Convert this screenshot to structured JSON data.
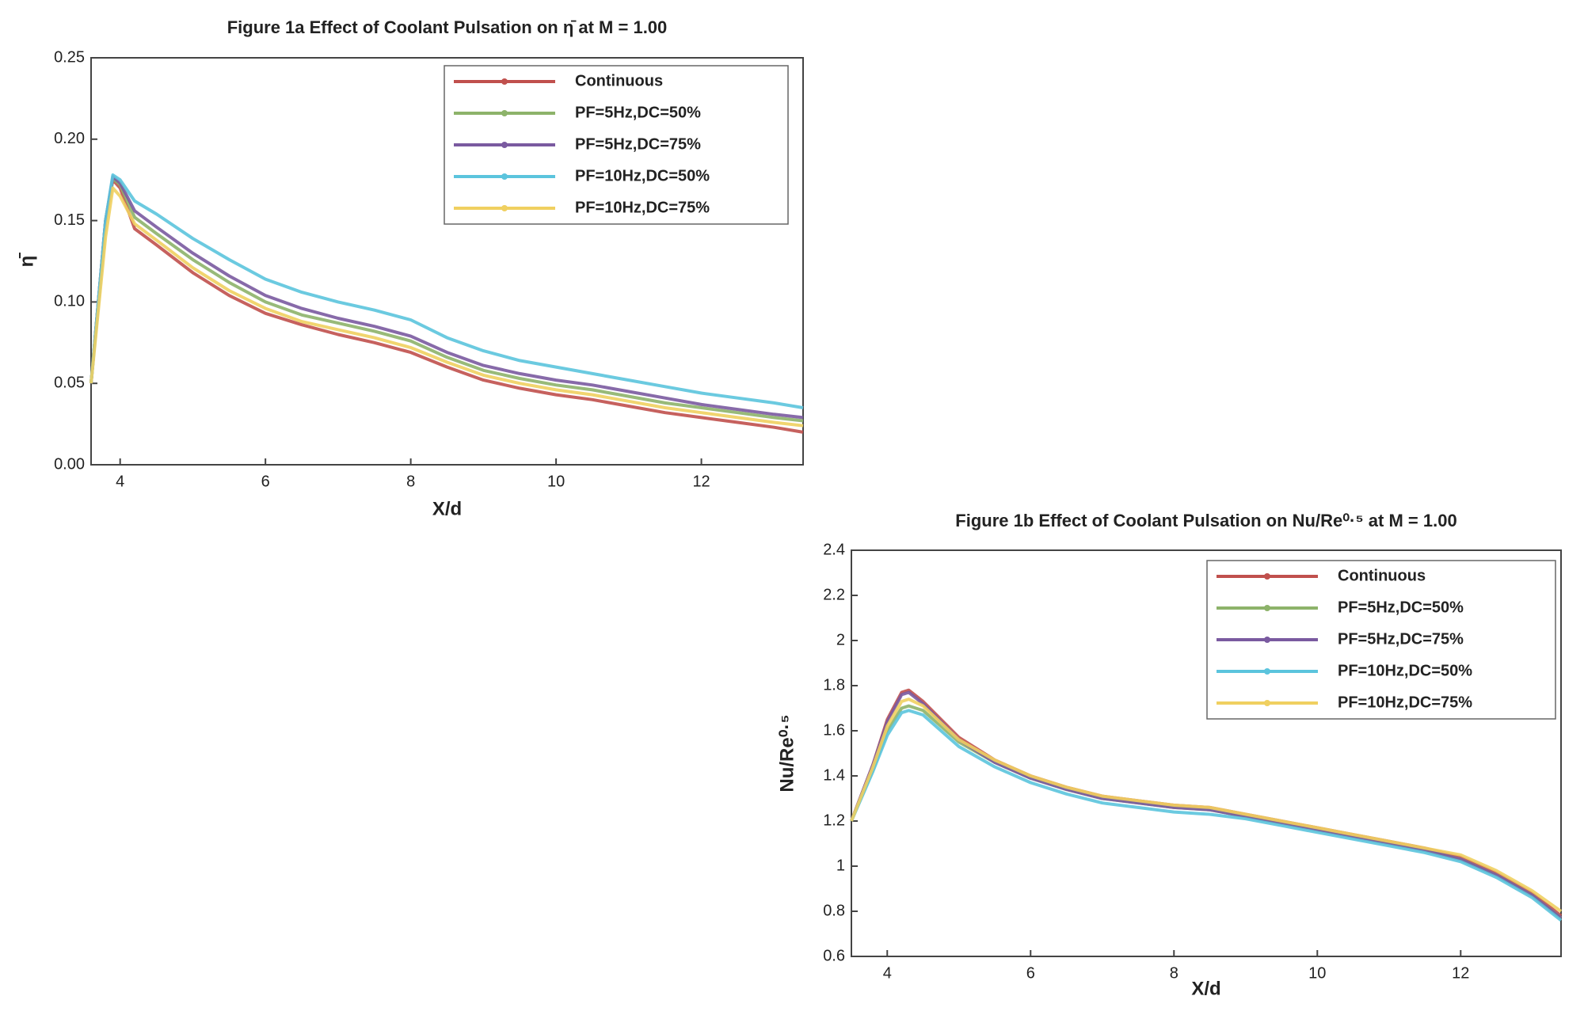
{
  "chart_data": [
    {
      "type": "line",
      "title": "Figure 1a  Effect of Coolant Pulsation on η̄ at M = 1.00",
      "x_label": "X/d",
      "y_label": "η̄",
      "legend": "upper right",
      "xlim": [
        3.6,
        13.4
      ],
      "xticks": [
        4,
        6,
        8,
        10,
        12
      ],
      "ylim": [
        0,
        0.25
      ],
      "yticks": [
        {
          "value": 0,
          "label": "0.00"
        },
        0.05,
        {
          "value": 0.1,
          "label": "0.10"
        },
        0.15,
        {
          "value": 0.2,
          "label": "0.20"
        },
        0.25
      ],
      "x": [
        3.6,
        3.8,
        3.9,
        4.0,
        4.2,
        4.5,
        5,
        5.5,
        6,
        6.5,
        7,
        7.5,
        8,
        8.5,
        9,
        9.5,
        10,
        10.5,
        11,
        11.5,
        12,
        12.5,
        13,
        13.4
      ],
      "series": [
        {
          "name": "Continuous",
          "color": "#c0504d",
          "values": [
            0.05,
            0.15,
            0.175,
            0.17,
            0.145,
            0.135,
            0.118,
            0.104,
            0.093,
            0.086,
            0.08,
            0.075,
            0.069,
            0.06,
            0.052,
            0.047,
            0.043,
            0.04,
            0.036,
            0.032,
            0.029,
            0.026,
            0.023,
            0.02
          ]
        },
        {
          "name": "PF=5Hz,DC=50%",
          "color": "#8db36a",
          "values": [
            0.05,
            0.15,
            0.176,
            0.172,
            0.152,
            0.142,
            0.126,
            0.112,
            0.1,
            0.092,
            0.087,
            0.082,
            0.076,
            0.066,
            0.058,
            0.053,
            0.049,
            0.046,
            0.042,
            0.038,
            0.035,
            0.032,
            0.029,
            0.027
          ]
        },
        {
          "name": "PF=5Hz,DC=75%",
          "color": "#7a5aa0",
          "values": [
            0.05,
            0.15,
            0.177,
            0.173,
            0.156,
            0.146,
            0.13,
            0.116,
            0.104,
            0.096,
            0.09,
            0.085,
            0.079,
            0.069,
            0.061,
            0.056,
            0.052,
            0.049,
            0.045,
            0.041,
            0.037,
            0.034,
            0.031,
            0.029
          ]
        },
        {
          "name": "PF=10Hz,DC=50%",
          "color": "#5bc4dd",
          "values": [
            0.05,
            0.15,
            0.178,
            0.175,
            0.162,
            0.154,
            0.139,
            0.126,
            0.114,
            0.106,
            0.1,
            0.095,
            0.089,
            0.078,
            0.07,
            0.064,
            0.06,
            0.056,
            0.052,
            0.048,
            0.044,
            0.041,
            0.038,
            0.035
          ]
        },
        {
          "name": "PF=10Hz,DC=75%",
          "color": "#f0d060",
          "values": [
            0.05,
            0.14,
            0.17,
            0.165,
            0.148,
            0.138,
            0.121,
            0.107,
            0.096,
            0.088,
            0.083,
            0.078,
            0.072,
            0.063,
            0.055,
            0.05,
            0.046,
            0.043,
            0.039,
            0.035,
            0.032,
            0.029,
            0.026,
            0.024
          ]
        }
      ]
    },
    {
      "type": "line",
      "title": "Figure 1b  Effect of Coolant Pulsation on Nu/Re⁰·⁵ at M = 1.00",
      "x_label": "X/d",
      "y_label": "Nu/Re⁰·⁵",
      "legend": "upper right",
      "xlim": [
        3.5,
        13.4
      ],
      "xticks": [
        4,
        6,
        8,
        10,
        12
      ],
      "ylim": [
        0.6,
        2.4
      ],
      "yticks": [
        0.6,
        0.8,
        1,
        1.2,
        1.4,
        1.6,
        1.8,
        2,
        2.2,
        2.4
      ],
      "x": [
        3.5,
        3.8,
        4.0,
        4.2,
        4.3,
        4.5,
        5,
        5.5,
        6,
        6.5,
        7,
        7.5,
        8,
        8.5,
        9,
        9.5,
        10,
        10.5,
        11,
        11.5,
        12,
        12.5,
        13,
        13.4
      ],
      "series": [
        {
          "name": "Continuous",
          "color": "#c0504d",
          "values": [
            1.2,
            1.45,
            1.65,
            1.77,
            1.78,
            1.73,
            1.57,
            1.47,
            1.4,
            1.35,
            1.31,
            1.29,
            1.27,
            1.26,
            1.23,
            1.2,
            1.17,
            1.14,
            1.11,
            1.08,
            1.04,
            0.97,
            0.88,
            0.78
          ]
        },
        {
          "name": "PF=5Hz,DC=50%",
          "color": "#8db36a",
          "values": [
            1.2,
            1.43,
            1.6,
            1.7,
            1.71,
            1.69,
            1.55,
            1.46,
            1.39,
            1.34,
            1.3,
            1.28,
            1.26,
            1.25,
            1.22,
            1.19,
            1.16,
            1.13,
            1.1,
            1.07,
            1.03,
            0.96,
            0.87,
            0.77
          ]
        },
        {
          "name": "PF=5Hz,DC=75%",
          "color": "#7a5aa0",
          "values": [
            1.2,
            1.45,
            1.64,
            1.76,
            1.77,
            1.72,
            1.56,
            1.46,
            1.39,
            1.34,
            1.3,
            1.28,
            1.26,
            1.25,
            1.22,
            1.19,
            1.16,
            1.13,
            1.1,
            1.07,
            1.03,
            0.96,
            0.87,
            0.77
          ]
        },
        {
          "name": "PF=10Hz,DC=50%",
          "color": "#5bc4dd",
          "values": [
            1.2,
            1.42,
            1.58,
            1.68,
            1.69,
            1.67,
            1.53,
            1.44,
            1.37,
            1.32,
            1.28,
            1.26,
            1.24,
            1.23,
            1.21,
            1.18,
            1.15,
            1.12,
            1.09,
            1.06,
            1.02,
            0.95,
            0.86,
            0.76
          ]
        },
        {
          "name": "PF=10Hz,DC=75%",
          "color": "#f0d060",
          "values": [
            1.2,
            1.44,
            1.62,
            1.73,
            1.74,
            1.71,
            1.56,
            1.47,
            1.4,
            1.35,
            1.31,
            1.29,
            1.27,
            1.26,
            1.23,
            1.2,
            1.17,
            1.14,
            1.11,
            1.08,
            1.05,
            0.98,
            0.89,
            0.8
          ]
        }
      ]
    }
  ]
}
